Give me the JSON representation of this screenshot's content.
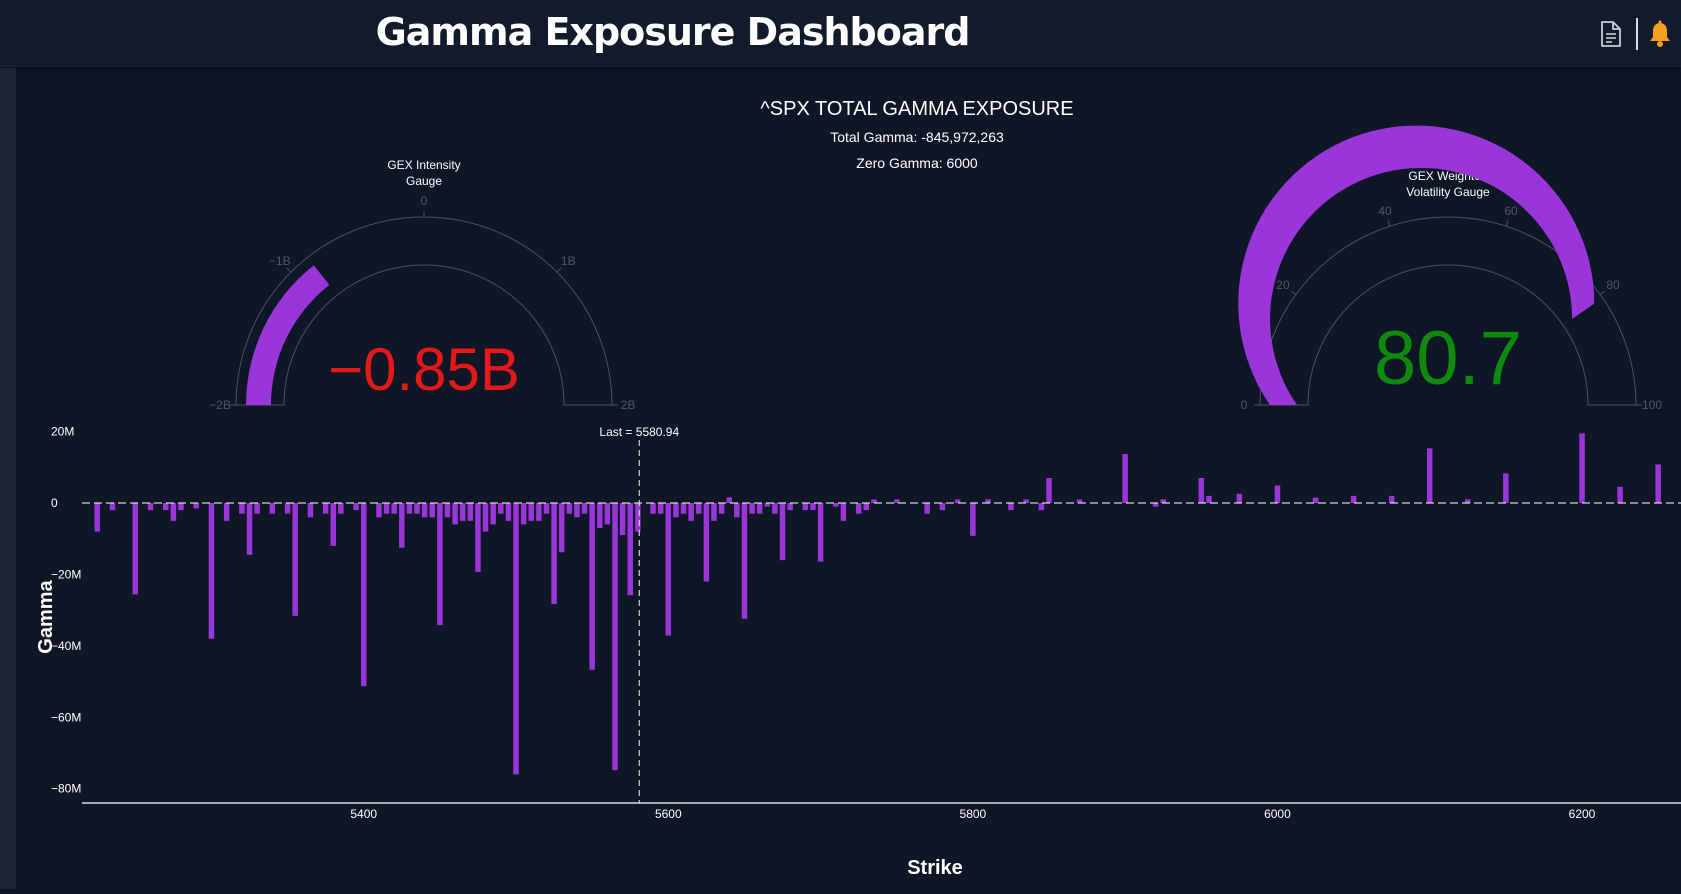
{
  "header": {
    "title": "Gamma Exposure Dashboard",
    "report_icon": "document-icon",
    "alert_icon": "bell-icon"
  },
  "summary": {
    "title": "^SPX TOTAL GAMMA EXPOSURE",
    "total_gamma": "Total Gamma: -845,972,263",
    "zero_gamma": "Zero Gamma: 6000"
  },
  "gauges": {
    "intensity": {
      "title_line1": "GEX Intensity",
      "title_line2": "Gauge",
      "value": -0.85,
      "display": "−0.85B",
      "min": -2,
      "max": 2,
      "ticks": [
        "−2B",
        "−1B",
        "0",
        "1B",
        "2B"
      ],
      "bar_color": "#9a35d9",
      "value_color": "#e51919"
    },
    "volatility": {
      "title_line1": "GEX Weighted",
      "title_line2": "Volatility Gauge",
      "value": 80.7,
      "display": "80.7",
      "min": 0,
      "max": 100,
      "ticks": [
        "0",
        "20",
        "40",
        "60",
        "80",
        "100"
      ],
      "bar_color": "#9a35d9",
      "value_color": "#0f8a0f"
    }
  },
  "chart_data": {
    "type": "bar",
    "xlabel": "Strike",
    "ylabel": "Gamma",
    "xlim": [
      5215,
      6265
    ],
    "ylim": [
      -84,
      21
    ],
    "y_unit": "M",
    "y_ticks": [
      20,
      0,
      -20,
      -40,
      -60,
      -80
    ],
    "y_tick_labels": [
      "20M",
      "0",
      "−20M",
      "−40M",
      "−60M",
      "−80M"
    ],
    "x_ticks": [
      5400,
      5600,
      5800,
      6000,
      6200
    ],
    "x_tick_labels": [
      "5400",
      "5600",
      "5800",
      "6000",
      "6200"
    ],
    "last_price": 5580.94,
    "last_label": "Last = 5580.94",
    "bar_color": "#9a35d9",
    "bars": [
      [
        5225,
        -8
      ],
      [
        5235,
        -2
      ],
      [
        5250,
        -25.6
      ],
      [
        5260,
        -2
      ],
      [
        5270,
        -2
      ],
      [
        5275,
        -5
      ],
      [
        5280,
        -2
      ],
      [
        5290,
        -1.5
      ],
      [
        5300,
        -38
      ],
      [
        5310,
        -5
      ],
      [
        5320,
        -3
      ],
      [
        5325,
        -14.5
      ],
      [
        5330,
        -3
      ],
      [
        5340,
        -3
      ],
      [
        5350,
        -3
      ],
      [
        5355,
        -31.6
      ],
      [
        5365,
        -4
      ],
      [
        5375,
        -3
      ],
      [
        5380,
        -12
      ],
      [
        5385,
        -3
      ],
      [
        5395,
        -2
      ],
      [
        5400,
        -51.3
      ],
      [
        5410,
        -4
      ],
      [
        5415,
        -3
      ],
      [
        5420,
        -3
      ],
      [
        5425,
        -12.5
      ],
      [
        5430,
        -3
      ],
      [
        5435,
        -3
      ],
      [
        5440,
        -4
      ],
      [
        5445,
        -4
      ],
      [
        5450,
        -34.2
      ],
      [
        5455,
        -4
      ],
      [
        5460,
        -6
      ],
      [
        5465,
        -5
      ],
      [
        5470,
        -5
      ],
      [
        5475,
        -19.3
      ],
      [
        5480,
        -8
      ],
      [
        5485,
        -6
      ],
      [
        5490,
        -3
      ],
      [
        5495,
        -5
      ],
      [
        5500,
        -76
      ],
      [
        5505,
        -6
      ],
      [
        5510,
        -5
      ],
      [
        5515,
        -5
      ],
      [
        5520,
        -3
      ],
      [
        5525,
        -28.3
      ],
      [
        5530,
        -13.8
      ],
      [
        5535,
        -3
      ],
      [
        5540,
        -4
      ],
      [
        5545,
        -3
      ],
      [
        5550,
        -46.7
      ],
      [
        5555,
        -7
      ],
      [
        5560,
        -6
      ],
      [
        5565,
        -74.8
      ],
      [
        5570,
        -9
      ],
      [
        5575,
        -25.8
      ],
      [
        5580,
        -8
      ],
      [
        5590,
        -3
      ],
      [
        5595,
        -3
      ],
      [
        5600,
        -37.1
      ],
      [
        5605,
        -4
      ],
      [
        5610,
        -3
      ],
      [
        5615,
        -5
      ],
      [
        5620,
        -3
      ],
      [
        5625,
        -22
      ],
      [
        5630,
        -5
      ],
      [
        5635,
        -3
      ],
      [
        5640,
        1.6
      ],
      [
        5645,
        -4
      ],
      [
        5650,
        -32.4
      ],
      [
        5655,
        -3
      ],
      [
        5660,
        -3
      ],
      [
        5665,
        -1
      ],
      [
        5670,
        -3
      ],
      [
        5675,
        -16
      ],
      [
        5680,
        -2
      ],
      [
        5690,
        -2
      ],
      [
        5695,
        -2
      ],
      [
        5700,
        -16.4
      ],
      [
        5710,
        -1
      ],
      [
        5715,
        -5
      ],
      [
        5725,
        -3
      ],
      [
        5730,
        -2
      ],
      [
        5735,
        1
      ],
      [
        5750,
        1
      ],
      [
        5770,
        -3
      ],
      [
        5780,
        -2
      ],
      [
        5790,
        1
      ],
      [
        5800,
        -9.2
      ],
      [
        5810,
        1
      ],
      [
        5825,
        -2
      ],
      [
        5835,
        1
      ],
      [
        5845,
        -2
      ],
      [
        5850,
        7
      ],
      [
        5870,
        1
      ],
      [
        5900,
        13.7
      ],
      [
        5920,
        -1
      ],
      [
        5925,
        1
      ],
      [
        5950,
        7
      ],
      [
        5955,
        2
      ],
      [
        5975,
        2.6
      ],
      [
        6000,
        4.9
      ],
      [
        6025,
        1.5
      ],
      [
        6050,
        2
      ],
      [
        6075,
        2
      ],
      [
        6100,
        15.3
      ],
      [
        6125,
        1
      ],
      [
        6150,
        8.3
      ],
      [
        6200,
        19.5
      ],
      [
        6225,
        4.5
      ],
      [
        6250,
        10.8
      ]
    ]
  }
}
